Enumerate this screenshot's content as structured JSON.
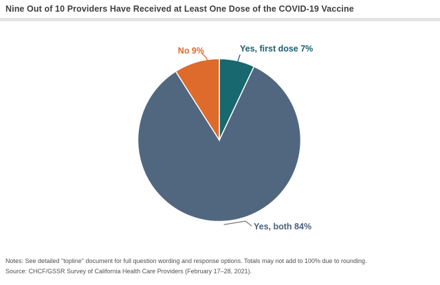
{
  "header": {
    "title": "Nine Out of 10 Providers Have Received at Least One Dose of the COVID-19 Vaccine"
  },
  "chart_data": {
    "type": "pie",
    "title": "Nine Out of 10 Providers Have Received at Least One Dose of the COVID-19 Vaccine",
    "total": 100,
    "start_angle_deg": 0,
    "direction": "clockwise",
    "labels_position": "outside",
    "slices": [
      {
        "id": "yes-first-dose",
        "label": "Yes, first dose",
        "value": 7,
        "display": "Yes, first dose 7%",
        "color": "#17686F",
        "label_color": "#1A5F6E",
        "leader_color": "#17686F"
      },
      {
        "id": "yes-both",
        "label": "Yes, both",
        "value": 84,
        "display": "Yes, both 84%",
        "color": "#516780",
        "label_color": "#4A6078",
        "leader_color": "#777777"
      },
      {
        "id": "no",
        "label": "No",
        "value": 9,
        "display": "No 9%",
        "color": "#DE6A2B",
        "label_color": "#DE6A2B",
        "leader_color": "#DE6A2B"
      }
    ]
  },
  "footer": {
    "notes": "Notes: See detailed \"topline\" document for full question wording and response options. Totals may not add to 100% due to rounding.",
    "source": "Source: CHCF/GSSR Survey of California Health Care Providers (February 17–28, 2021)."
  }
}
